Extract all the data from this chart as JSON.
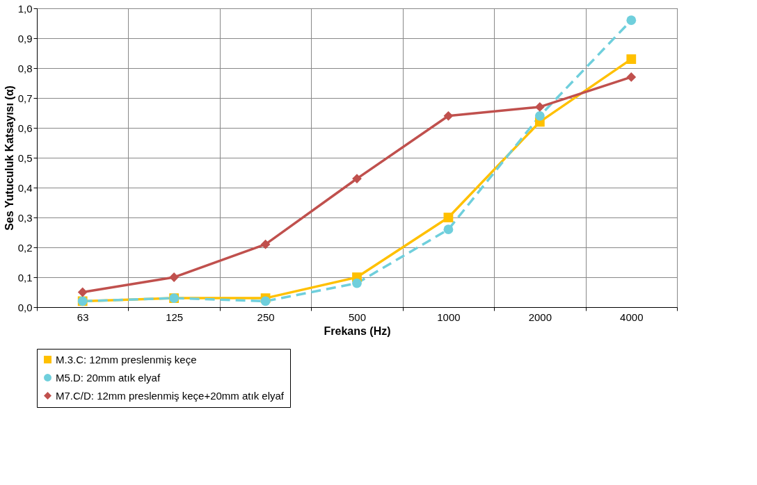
{
  "chart_data": {
    "type": "line",
    "xlabel": "Frekans (Hz)",
    "ylabel": "Ses Yutuculuk Katsayısı (α)",
    "categories": [
      "63",
      "125",
      "250",
      "500",
      "1000",
      "2000",
      "4000"
    ],
    "ylim": [
      0,
      1.0
    ],
    "yticks": [
      {
        "value": 0,
        "label": "0,0"
      },
      {
        "value": 0.1,
        "label": "0,1"
      },
      {
        "value": 0.2,
        "label": "0,2"
      },
      {
        "value": 0.3,
        "label": "0,3"
      },
      {
        "value": 0.4,
        "label": "0,4"
      },
      {
        "value": 0.5,
        "label": "0,5"
      },
      {
        "value": 0.6,
        "label": "0,6"
      },
      {
        "value": 0.7,
        "label": "0,7"
      },
      {
        "value": 0.8,
        "label": "0,8"
      },
      {
        "value": 0.9,
        "label": "0,9"
      },
      {
        "value": 1.0,
        "label": "1,0"
      }
    ],
    "grid": true,
    "legend": "bottom",
    "series": [
      {
        "name": "M.3.C: 12mm preslenmiş keçe",
        "color": "#ffc000",
        "marker": "square",
        "line_style": "solid",
        "values": [
          0.02,
          0.03,
          0.03,
          0.1,
          0.3,
          0.62,
          0.83
        ]
      },
      {
        "name": "M5.D: 20mm atık elyaf",
        "color": "#6fcfdc",
        "marker": "circle",
        "line_style": "dashed",
        "values": [
          0.02,
          0.03,
          0.02,
          0.08,
          0.26,
          0.64,
          0.96
        ]
      },
      {
        "name": "M7.C/D: 12mm preslenmiş keçe+20mm atık elyaf",
        "color": "#c0504d",
        "marker": "diamond",
        "line_style": "solid",
        "values": [
          0.05,
          0.1,
          0.21,
          0.43,
          0.64,
          0.67,
          0.77
        ]
      }
    ]
  }
}
